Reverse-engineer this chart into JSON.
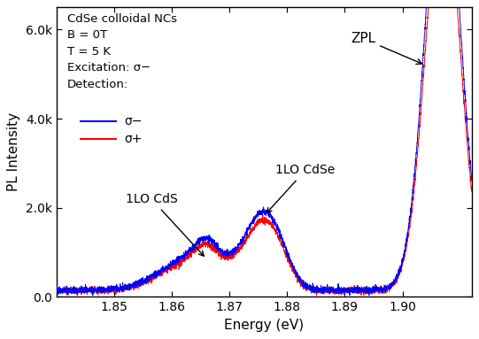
{
  "xlabel": "Energy (eV)",
  "ylabel": "PL Intensity",
  "xlim": [
    1.84,
    1.912
  ],
  "ylim": [
    0,
    6500
  ],
  "yticks": [
    0,
    2000,
    4000,
    6000
  ],
  "ytick_labels": [
    "0.0",
    "2.0k",
    "4.0k",
    "6.0k"
  ],
  "xticks": [
    1.85,
    1.86,
    1.87,
    1.88,
    1.89,
    1.9
  ],
  "line_blue_color": "#0000ff",
  "line_red_color": "#ff0000",
  "noise_seed_blue": 42,
  "noise_seed_red": 99,
  "annotation_1lo_cds_text": "1LO CdS",
  "annotation_1lo_cdse_text": "1LO CdSe",
  "annotation_zpl_text": "ZPL",
  "legend_text_1": "σ−",
  "legend_text_2": "σ+",
  "info_text": "CdSe colloidal NCs\nB = 0T\nT = 5 K\nExcitation: σ−\nDetection:",
  "figsize": [
    5.41,
    3.83
  ],
  "dpi": 100
}
